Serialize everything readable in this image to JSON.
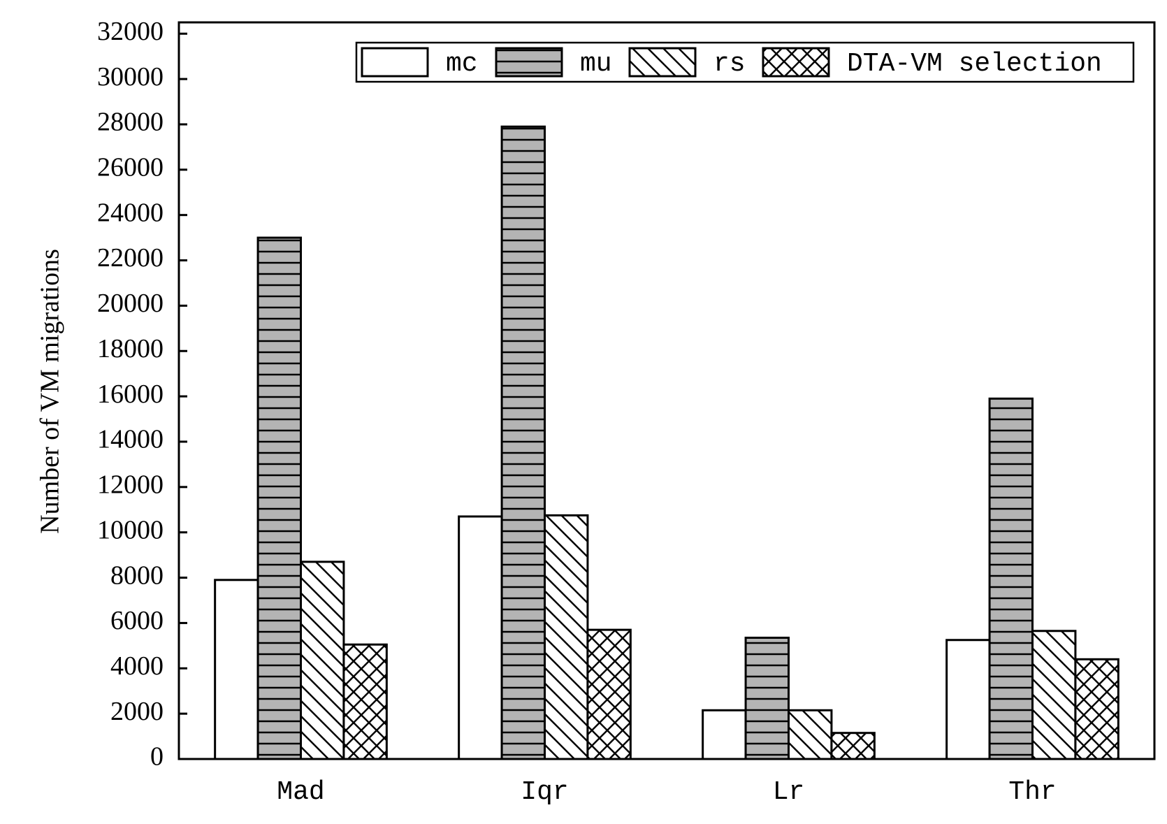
{
  "chart_data": {
    "type": "bar",
    "y_label": "Number of VM migrations",
    "categories": [
      "Mad",
      "Iqr",
      "Lr",
      "Thr"
    ],
    "series": [
      {
        "name": "mc",
        "color": "#ffffff",
        "hatch": "none",
        "values": [
          7900,
          10700,
          2150,
          5250
        ]
      },
      {
        "name": "mu",
        "color": "#b4b4b4",
        "hatch": "horizontal",
        "values": [
          23000,
          27900,
          5350,
          15900
        ]
      },
      {
        "name": "rs",
        "color": "#ffffff",
        "hatch": "diagonal",
        "values": [
          8700,
          10750,
          2150,
          5650
        ]
      },
      {
        "name": "DTA-VM selection",
        "color": "#ffffff",
        "hatch": "cross",
        "values": [
          5050,
          5700,
          1150,
          4400
        ]
      }
    ],
    "ylim": [
      0,
      32500
    ],
    "yticks": [
      0,
      2000,
      4000,
      6000,
      8000,
      10000,
      12000,
      14000,
      16000,
      18000,
      20000,
      22000,
      24000,
      26000,
      28000,
      30000,
      32000
    ],
    "legend": "upper right"
  }
}
